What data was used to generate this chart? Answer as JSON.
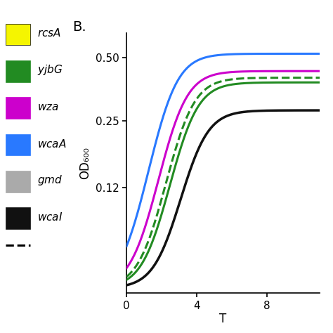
{
  "title": "B.",
  "xlabel": "T",
  "ylabel": "OD₆₀₀",
  "x_ticks": [
    0,
    4,
    8
  ],
  "y_ticks": [
    0.12,
    0.25,
    0.5
  ],
  "y_tick_labels": [
    "0.12",
    "0.25",
    "0.50"
  ],
  "ylim_log": [
    -1.0,
    0.72
  ],
  "xlim": [
    0,
    11
  ],
  "background_color": "#ffffff",
  "lines": [
    {
      "label": "wcaA",
      "color": "#2979ff",
      "linestyle": "solid",
      "linewidth": 2.2,
      "lag": 2.2,
      "rate": 1.35,
      "max_od": 0.52
    },
    {
      "label": "wza",
      "color": "#cc00cc",
      "linestyle": "solid",
      "linewidth": 2.2,
      "lag": 2.7,
      "rate": 1.35,
      "max_od": 0.43
    },
    {
      "label": "yjbG_dashed",
      "color": "#228B22",
      "linestyle": "dashed",
      "linewidth": 2.2,
      "lag": 3.1,
      "rate": 1.35,
      "max_od": 0.4
    },
    {
      "label": "yjbG_solid",
      "color": "#228B22",
      "linestyle": "solid",
      "linewidth": 2.2,
      "lag": 3.3,
      "rate": 1.35,
      "max_od": 0.38
    },
    {
      "label": "wcaI",
      "color": "#111111",
      "linestyle": "solid",
      "linewidth": 2.5,
      "lag": 3.8,
      "rate": 1.35,
      "max_od": 0.28
    }
  ],
  "legend_entries": [
    {
      "label": "rcsA",
      "color": "#f5f500",
      "linestyle": "solid"
    },
    {
      "label": "yjbG",
      "color": "#228B22",
      "linestyle": "solid"
    },
    {
      "label": "wza",
      "color": "#cc00cc",
      "linestyle": "solid"
    },
    {
      "label": "wcaA",
      "color": "#2979ff",
      "linestyle": "solid"
    },
    {
      "label": "gmd",
      "color": "#aaaaaa",
      "linestyle": "solid"
    },
    {
      "label": "wcaI",
      "color": "#111111",
      "linestyle": "solid"
    }
  ]
}
